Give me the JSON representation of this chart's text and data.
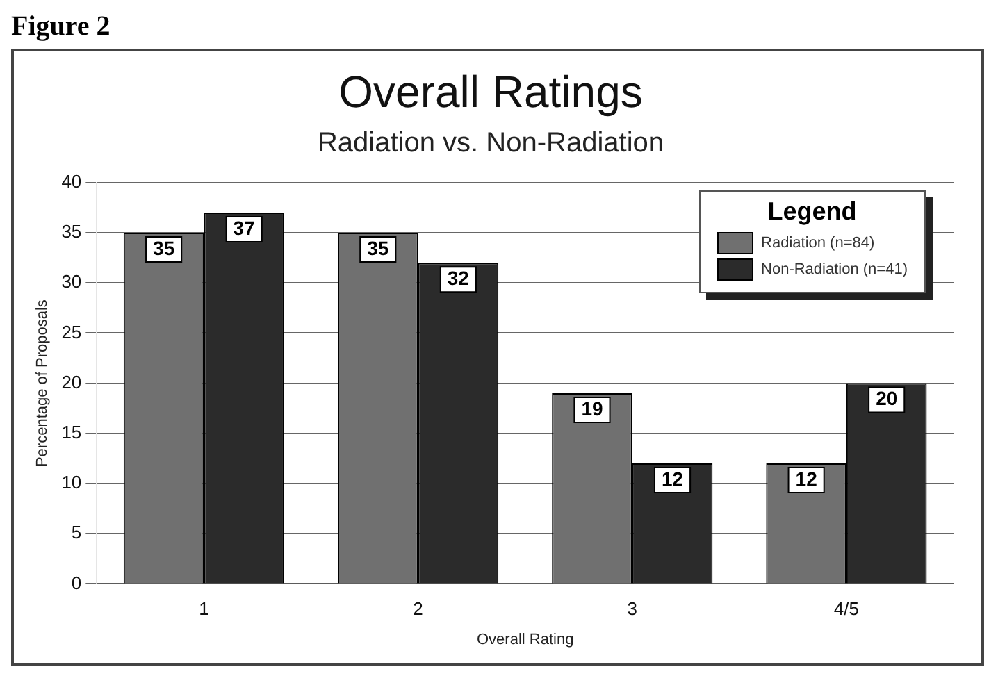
{
  "chart_data": {
    "type": "bar",
    "title": "Overall Ratings",
    "subtitle": "Radiation vs. Non-Radiation",
    "xlabel": "Overall Rating",
    "ylabel": "Percentage of Proposals",
    "legend_title": "Legend",
    "annotations": [
      "Figure 2"
    ],
    "categories": [
      "1",
      "2",
      "3",
      "4/5"
    ],
    "series": [
      {
        "name": "Radiation (n=84)",
        "color": "#707070",
        "values": [
          35,
          35,
          19,
          12
        ]
      },
      {
        "name": "Non-Radiation (n=41)",
        "color": "#2b2b2b",
        "values": [
          37,
          32,
          12,
          20
        ]
      }
    ],
    "ylim": [
      0,
      40
    ],
    "yticks": [
      0,
      5,
      10,
      15,
      20,
      25,
      30,
      35,
      40
    ],
    "grid": "y",
    "legend": "top right",
    "data_labels": true
  }
}
